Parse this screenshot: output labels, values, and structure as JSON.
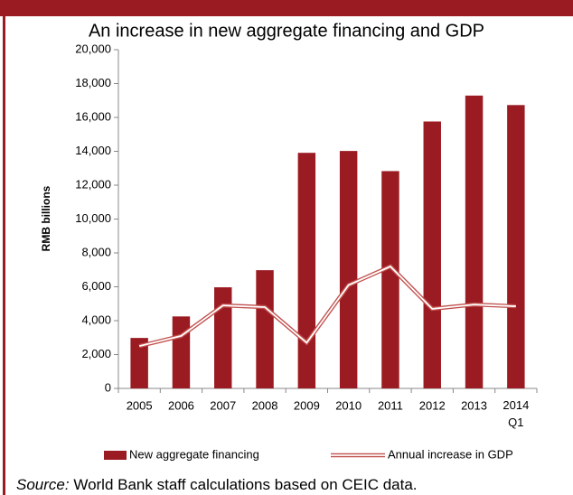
{
  "chart_data": {
    "type": "bar",
    "title": "An increase in new aggregate financing and GDP",
    "ylabel": "RMB billions",
    "categories": [
      "2005",
      "2006",
      "2007",
      "2008",
      "2009",
      "2010",
      "2011",
      "2012",
      "2013",
      "2014 Q1"
    ],
    "series": [
      {
        "name": "New aggregate financing",
        "type": "bar",
        "color": "#9b1b22",
        "values": [
          2980,
          4250,
          5970,
          6980,
          13910,
          14020,
          12830,
          15760,
          17290,
          16730
        ]
      },
      {
        "name": "Annual increase in GDP",
        "type": "line",
        "color": "#c0504d",
        "values": [
          2500,
          3100,
          4900,
          4800,
          2700,
          6100,
          7200,
          4700,
          4950,
          4850
        ]
      }
    ],
    "ylim": [
      0,
      20000
    ],
    "yticks": [
      0,
      {
        "value": 2000,
        "label": "2,000"
      },
      {
        "value": 4000,
        "label": "4,000"
      },
      {
        "value": 6000,
        "label": "6,000"
      },
      {
        "value": 8000,
        "label": "8,000"
      },
      {
        "value": 10000,
        "label": "10,000"
      },
      {
        "value": 12000,
        "label": "12,000"
      },
      {
        "value": 14000,
        "label": "14,000"
      },
      {
        "value": 16000,
        "label": "16,000"
      },
      {
        "value": 18000,
        "label": "18,000"
      },
      {
        "value": 20000,
        "label": "20,000"
      }
    ],
    "grid": false,
    "legend": "bottom",
    "source": {
      "label": "Source:",
      "text": "World Bank staff calculations based on CEIC data."
    }
  }
}
